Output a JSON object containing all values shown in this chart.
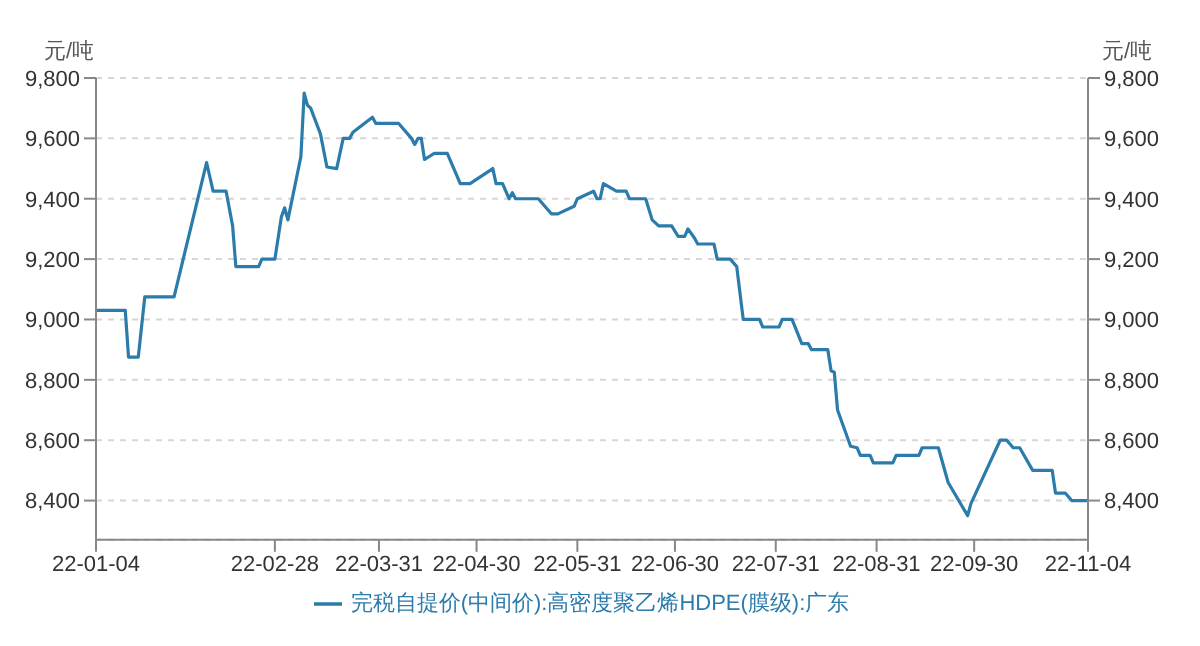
{
  "chart_data": {
    "type": "line",
    "ylabel": "元/吨",
    "y2label": "元/吨",
    "x": [
      "--01-04",
      "--01-13",
      "--01-14",
      "--01-17",
      "--01-19",
      "--01-28",
      "--02-07",
      "--02-09",
      "--02-13",
      "--02-15",
      "--02-16",
      "--02-23",
      "--02-24",
      "--02-28",
      "--03-01",
      "--03-02",
      "--03-03",
      "--03-07",
      "--03-08",
      "--03-09",
      "--03-10",
      "--03-13",
      "--03-15",
      "--03-18",
      "--03-20",
      "--03-22",
      "--03-23",
      "--03-29",
      "--03-30",
      "--04-06",
      "--04-10",
      "--04-11",
      "--04-12",
      "--04-13",
      "--04-14",
      "--04-17",
      "--04-21",
      "--04-25",
      "--04-28",
      "--05-05",
      "--05-06",
      "--05-08",
      "--05-10",
      "--05-11",
      "--05-12",
      "--05-19",
      "--05-23",
      "--05-25",
      "--05-30",
      "--05-31",
      "--06-05",
      "--06-06",
      "--06-07",
      "--06-08",
      "--06-12",
      "--06-15",
      "--06-16",
      "--06-21",
      "--06-23",
      "--06-25",
      "--06-29",
      "--07-01",
      "--07-03",
      "--07-04",
      "--07-06",
      "--07-07",
      "--07-12",
      "--07-13",
      "--07-17",
      "--07-19",
      "--07-21",
      "--07-26",
      "--07-27",
      "--08-01",
      "--08-02",
      "--08-05",
      "--08-08",
      "--08-10",
      "--08-11",
      "--08-16",
      "--08-17",
      "--08-18",
      "--08-19",
      "--08-23",
      "--08-25",
      "--08-26",
      "--08-29",
      "--08-30",
      "--09-05",
      "--09-06",
      "--09-13",
      "--09-14",
      "--09-19",
      "--09-22",
      "--09-28",
      "--09-29",
      "--10-08",
      "--10-10",
      "--10-12",
      "--10-14",
      "--10-18",
      "--10-24",
      "--10-25",
      "--10-28",
      "--10-30",
      "--11-04"
    ],
    "series": [
      {
        "name": "完税自提价(中间价):高密度聚乙烯HDPE(膜级):广东",
        "color": "#2b7bab",
        "values": [
          9030,
          9030,
          8875,
          8875,
          9075,
          9075,
          9520,
          9425,
          9425,
          9310,
          9175,
          9175,
          9200,
          9200,
          9340,
          9370,
          9330,
          9540,
          9750,
          9710,
          9700,
          9615,
          9505,
          9500,
          9600,
          9600,
          9620,
          9670,
          9650,
          9650,
          9600,
          9580,
          9600,
          9600,
          9530,
          9550,
          9550,
          9450,
          9450,
          9500,
          9450,
          9450,
          9400,
          9420,
          9400,
          9400,
          9350,
          9350,
          9375,
          9400,
          9425,
          9400,
          9400,
          9450,
          9425,
          9425,
          9400,
          9400,
          9330,
          9310,
          9310,
          9275,
          9275,
          9300,
          9270,
          9250,
          9250,
          9200,
          9200,
          9175,
          9000,
          9000,
          8975,
          8975,
          9000,
          9000,
          8920,
          8920,
          8900,
          8900,
          8830,
          8825,
          8700,
          8580,
          8575,
          8550,
          8550,
          8525,
          8525,
          8550,
          8550,
          8575,
          8575,
          8460,
          8350,
          8390,
          8600,
          8600,
          8575,
          8575,
          8500,
          8500,
          8425,
          8425,
          8400,
          8400
        ]
      }
    ],
    "xlim": [
      "--01-04",
      "--11-04"
    ],
    "xticks": [
      {
        "value": "--01-04",
        "label": "22-01-04"
      },
      {
        "value": "--02-28",
        "label": "22-02-28"
      },
      {
        "value": "--03-31",
        "label": "22-03-31"
      },
      {
        "value": "--04-30",
        "label": "22-04-30"
      },
      {
        "value": "--05-31",
        "label": "22-05-31"
      },
      {
        "value": "--06-30",
        "label": "22-06-30"
      },
      {
        "value": "--07-31",
        "label": "22-07-31"
      },
      {
        "value": "--08-31",
        "label": "22-08-31"
      },
      {
        "value": "--09-30",
        "label": "22-09-30"
      },
      {
        "value": "--11-04",
        "label": "22-11-04"
      }
    ],
    "ylim": [
      8270,
      9800
    ],
    "yticks": [
      {
        "value": 8400,
        "label": "8,400"
      },
      {
        "value": 8600,
        "label": "8,600"
      },
      {
        "value": 8800,
        "label": "8,800"
      },
      {
        "value": 9000,
        "label": "9,000"
      },
      {
        "value": 9200,
        "label": "9,200"
      },
      {
        "value": 9400,
        "label": "9,400"
      },
      {
        "value": 9600,
        "label": "9,600"
      },
      {
        "value": 9800,
        "label": "9,800"
      }
    ],
    "y2lim": [
      8270,
      9800
    ],
    "y2ticks": [
      {
        "value": 8400,
        "label": "8,400"
      },
      {
        "value": 8600,
        "label": "8,600"
      },
      {
        "value": 8800,
        "label": "8,800"
      },
      {
        "value": 9000,
        "label": "9,000"
      },
      {
        "value": 9200,
        "label": "9,200"
      },
      {
        "value": 9400,
        "label": "9,400"
      },
      {
        "value": 9600,
        "label": "9,600"
      },
      {
        "value": 9800,
        "label": "9,800"
      }
    ],
    "grid": "y",
    "legend": "bottom",
    "marker": "none",
    "line_style": "solid"
  }
}
